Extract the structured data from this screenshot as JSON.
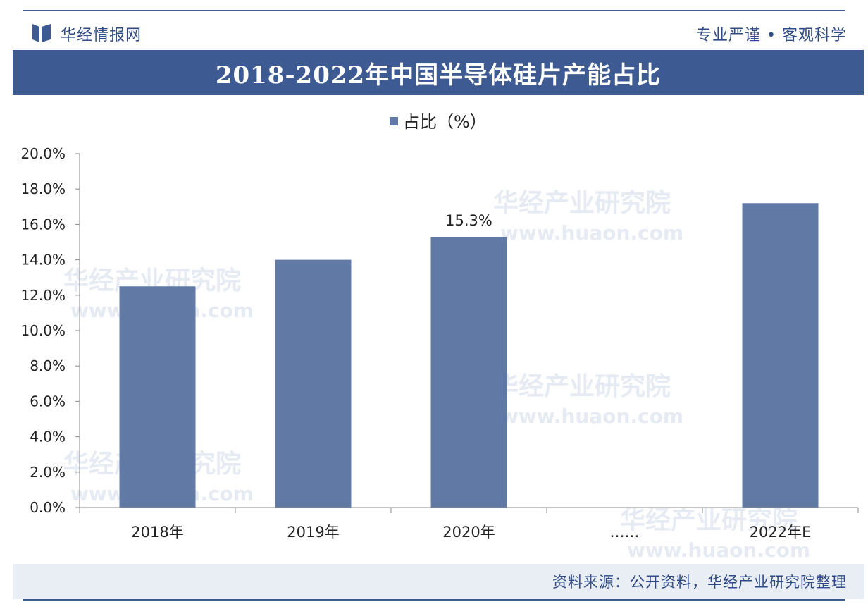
{
  "header": {
    "brand": "华经情报网",
    "slogan": "专业严谨 • 客观科学"
  },
  "title": "2018-2022年中国半导体硅片产能占比",
  "footer": {
    "source": "资料来源：公开资料，华经产业研究院整理"
  },
  "watermark": {
    "text": "华经产业研究院",
    "url": "www.huaon.com"
  },
  "colors": {
    "brand": "#3d5a93",
    "bar": "#6179a5",
    "axis": "#888888"
  },
  "chart_data": {
    "type": "bar",
    "legend": {
      "label": "占比（%）",
      "position": "top-center"
    },
    "categories": [
      "2018年",
      "2019年",
      "2020年",
      "……",
      "2022年E"
    ],
    "series": [
      {
        "name": "占比（%）",
        "values": [
          12.5,
          14.0,
          15.3,
          null,
          17.2
        ]
      }
    ],
    "data_labels": [
      "",
      "",
      "15.3%",
      "",
      ""
    ],
    "ylim": [
      0,
      20
    ],
    "yticks": [
      "0.0%",
      "2.0%",
      "4.0%",
      "6.0%",
      "8.0%",
      "10.0%",
      "12.0%",
      "14.0%",
      "16.0%",
      "18.0%",
      "20.0%"
    ],
    "grid": false
  }
}
